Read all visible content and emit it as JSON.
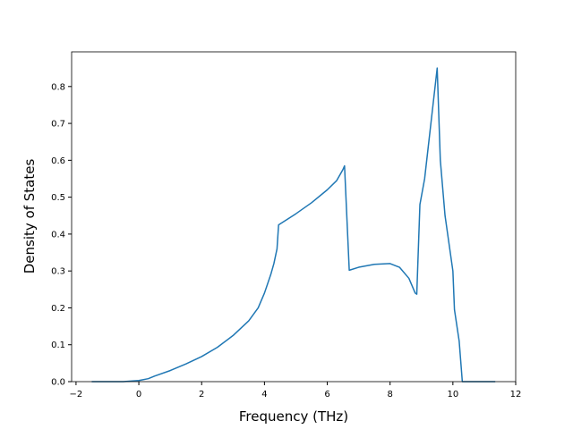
{
  "chart_data": {
    "type": "line",
    "x_label": "Frequency (THz)",
    "y_label": "Density of States",
    "xlim": [
      -2.14,
      12.0
    ],
    "ylim": [
      0,
      0.894
    ],
    "xticks": [
      {
        "value": -2,
        "label": "−2"
      },
      0,
      2,
      4,
      6,
      8,
      10,
      12
    ],
    "yticks": [
      {
        "value": 0,
        "label": "0.0"
      },
      0.1,
      0.2,
      0.3,
      0.4,
      0.5,
      0.6,
      0.7,
      0.8
    ],
    "grid": false,
    "series": [
      {
        "color": "#1f77b4",
        "x": [
          -1.5,
          -0.5,
          0,
          0.3,
          0.5,
          1,
          1.5,
          2,
          2.5,
          3,
          3.5,
          3.8,
          4,
          4.2,
          4.3,
          4.4,
          4.45,
          5,
          5.5,
          6,
          6.3,
          6.5,
          6.55,
          6.7,
          7,
          7.5,
          8,
          8.3,
          8.6,
          8.8,
          8.85,
          8.95,
          9.1,
          9.5,
          9.6,
          9.75,
          10,
          10.05,
          10.2,
          10.3,
          11.35
        ],
        "values": [
          0,
          0,
          0.003,
          0.008,
          0.015,
          0.03,
          0.048,
          0.068,
          0.093,
          0.125,
          0.165,
          0.2,
          0.24,
          0.29,
          0.32,
          0.36,
          0.425,
          0.455,
          0.485,
          0.52,
          0.545,
          0.575,
          0.585,
          0.302,
          0.31,
          0.318,
          0.32,
          0.31,
          0.28,
          0.24,
          0.237,
          0.48,
          0.55,
          0.85,
          0.6,
          0.45,
          0.3,
          0.195,
          0.11,
          0,
          0
        ]
      }
    ]
  }
}
